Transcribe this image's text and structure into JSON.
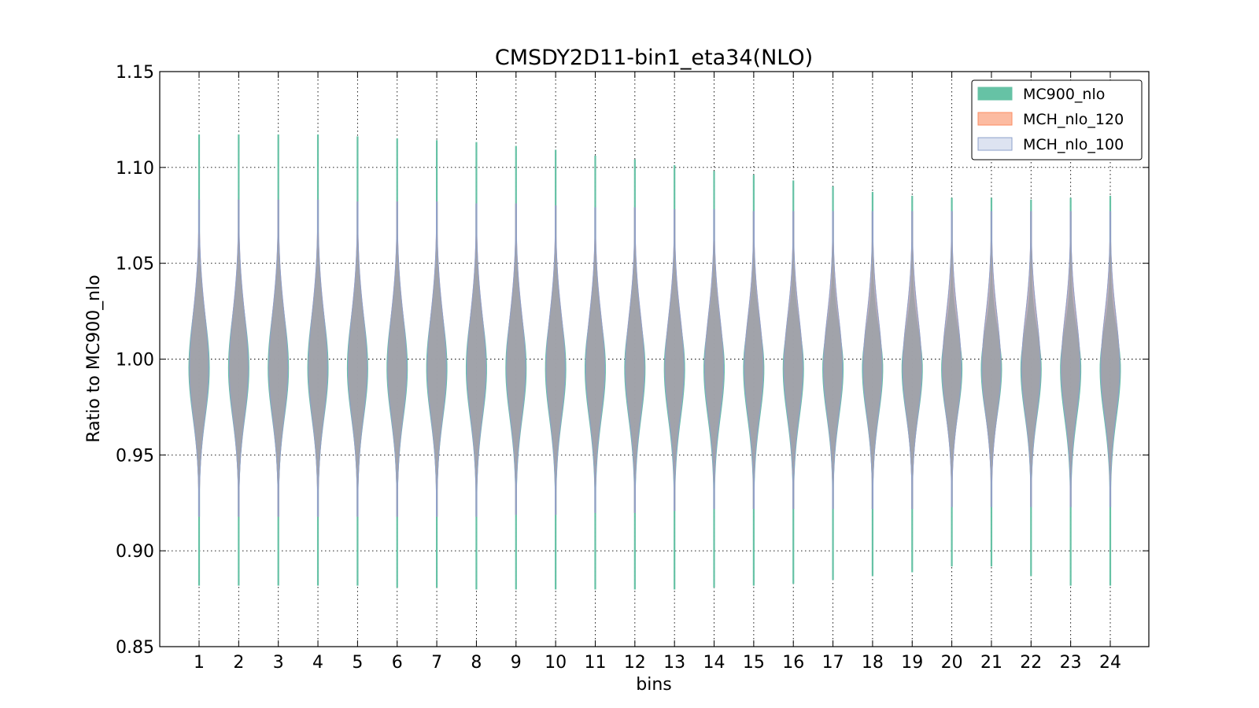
{
  "chart_data": {
    "type": "violin",
    "title": "CMSDY2D11-bin1_eta34(NLO)",
    "xlabel": "bins",
    "ylabel": "Ratio to MC900_nlo",
    "ylim": [
      0.85,
      1.15
    ],
    "yticks": [
      "0.85",
      "0.90",
      "0.95",
      "1.00",
      "1.05",
      "1.10",
      "1.15"
    ],
    "categories": [
      "1",
      "2",
      "3",
      "4",
      "5",
      "6",
      "7",
      "8",
      "9",
      "10",
      "11",
      "12",
      "13",
      "14",
      "15",
      "16",
      "17",
      "18",
      "19",
      "20",
      "21",
      "22",
      "23",
      "24"
    ],
    "grid": true,
    "legend_position": "top-right",
    "series": [
      {
        "name": "MC900_nlo",
        "color": "#66c2a5",
        "min": [
          0.882,
          0.882,
          0.882,
          0.882,
          0.882,
          0.881,
          0.881,
          0.88,
          0.88,
          0.88,
          0.88,
          0.88,
          0.88,
          0.881,
          0.882,
          0.883,
          0.885,
          0.887,
          0.889,
          0.892,
          0.892,
          0.887,
          0.882,
          0.882
        ],
        "max": [
          1.117,
          1.117,
          1.117,
          1.117,
          1.116,
          1.115,
          1.114,
          1.113,
          1.111,
          1.109,
          1.106,
          1.104,
          1.101,
          1.098,
          1.096,
          1.093,
          1.09,
          1.087,
          1.085,
          1.084,
          1.084,
          1.083,
          1.084,
          1.085
        ],
        "center": [
          0.995,
          0.995,
          0.995,
          0.995,
          0.995,
          0.995,
          0.995,
          0.995,
          0.995,
          0.995,
          0.995,
          0.995,
          0.995,
          0.995,
          0.995,
          0.995,
          0.995,
          0.995,
          0.995,
          0.995,
          0.995,
          0.995,
          0.995,
          0.995
        ]
      },
      {
        "name": "MCH_nlo_120",
        "color": "#fc8d62",
        "min": [
          0.918,
          0.918,
          0.918,
          0.918,
          0.918,
          0.918,
          0.918,
          0.918,
          0.919,
          0.919,
          0.92,
          0.92,
          0.921,
          0.922,
          0.922,
          0.922,
          0.922,
          0.922,
          0.922,
          0.923,
          0.923,
          0.923,
          0.923,
          0.923
        ],
        "max": [
          1.083,
          1.083,
          1.083,
          1.083,
          1.082,
          1.082,
          1.082,
          1.081,
          1.081,
          1.08,
          1.079,
          1.079,
          1.078,
          1.078,
          1.077,
          1.077,
          1.077,
          1.077,
          1.077,
          1.077,
          1.077,
          1.077,
          1.077,
          1.077
        ],
        "center": [
          0.995,
          0.995,
          0.995,
          0.995,
          0.995,
          0.995,
          0.995,
          0.995,
          0.995,
          0.995,
          0.995,
          0.995,
          0.995,
          0.995,
          0.995,
          0.995,
          0.995,
          0.995,
          0.995,
          0.995,
          0.995,
          0.995,
          0.995,
          0.995
        ]
      },
      {
        "name": "MCH_nlo_100",
        "color": "#8da0cb",
        "min": [
          0.918,
          0.918,
          0.918,
          0.918,
          0.918,
          0.918,
          0.918,
          0.918,
          0.919,
          0.919,
          0.92,
          0.92,
          0.921,
          0.922,
          0.922,
          0.922,
          0.922,
          0.922,
          0.922,
          0.923,
          0.923,
          0.923,
          0.923,
          0.923
        ],
        "max": [
          1.083,
          1.083,
          1.083,
          1.083,
          1.082,
          1.082,
          1.082,
          1.081,
          1.081,
          1.08,
          1.079,
          1.079,
          1.078,
          1.078,
          1.077,
          1.077,
          1.077,
          1.077,
          1.077,
          1.077,
          1.077,
          1.077,
          1.077,
          1.077
        ],
        "center": [
          0.995,
          0.995,
          0.995,
          0.995,
          0.995,
          0.995,
          0.995,
          0.995,
          0.995,
          0.995,
          0.995,
          0.995,
          0.995,
          0.995,
          0.995,
          0.995,
          0.995,
          0.995,
          0.995,
          0.995,
          0.995,
          0.995,
          0.995,
          0.995
        ]
      }
    ]
  }
}
